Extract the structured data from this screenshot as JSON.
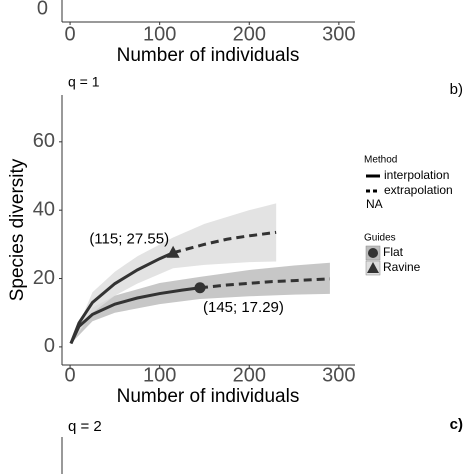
{
  "chart_data": [
    {
      "type": "axes",
      "xlabel": "Number of individuals",
      "xlim": [
        -9,
        318
      ],
      "xticks": [
        0,
        100,
        200,
        300
      ],
      "yticks": [
        0
      ]
    },
    {
      "type": "line",
      "title": "q = 1",
      "tag": "b)",
      "xlabel": "Number of individuals",
      "ylabel": "Species diversity",
      "xlim": [
        -9,
        318
      ],
      "ylim": [
        -5.3,
        73.7
      ],
      "xticks": [
        0,
        100,
        200,
        300
      ],
      "yticks": [
        0,
        20,
        40,
        60
      ],
      "legend": {
        "method_title": "Method",
        "methods": [
          "interpolation",
          "extrapolation",
          "NA"
        ],
        "guides_title": "Guides"
      },
      "series": [
        {
          "name": "Flat",
          "marker": "circle",
          "color": "#333333",
          "band_color": "#bdbdbd",
          "x": [
            1,
            10,
            25,
            50,
            75,
            100,
            125,
            145
          ],
          "values": [
            1,
            6,
            9.5,
            12.5,
            14.3,
            15.6,
            16.6,
            17.29
          ],
          "extrap_x": [
            145,
            175,
            200,
            225,
            250,
            275,
            290
          ],
          "extrap_values": [
            17.29,
            18.1,
            18.6,
            19.1,
            19.4,
            19.7,
            19.9
          ],
          "band_x": [
            1,
            25,
            50,
            100,
            145,
            200,
            250,
            290
          ],
          "band_lower": [
            1,
            7.5,
            10,
            12.5,
            14,
            14.8,
            15.3,
            15.5
          ],
          "band_upper": [
            1,
            11.5,
            15,
            18.7,
            20.5,
            22.5,
            23.8,
            24.6
          ],
          "annotation": "(145; 17.29)"
        },
        {
          "name": "Ravine",
          "marker": "triangle",
          "color": "#333333",
          "band_color": "#dedede",
          "x": [
            1,
            10,
            25,
            50,
            75,
            100,
            115
          ],
          "values": [
            1,
            7,
            13,
            18.5,
            22.5,
            25.8,
            27.55
          ],
          "extrap_x": [
            115,
            150,
            175,
            200,
            230
          ],
          "extrap_values": [
            27.55,
            30,
            31.5,
            32.5,
            33.5
          ],
          "band_x": [
            1,
            25,
            50,
            75,
            115,
            150,
            200,
            230
          ],
          "band_lower": [
            1,
            10,
            15,
            18.5,
            23,
            24,
            24.8,
            25
          ],
          "band_upper": [
            1,
            16,
            22,
            26.5,
            32,
            36,
            40,
            42
          ],
          "annotation": "(115; 27.55)"
        }
      ]
    },
    {
      "type": "axes",
      "title": "q = 2",
      "tag": "c)"
    }
  ]
}
